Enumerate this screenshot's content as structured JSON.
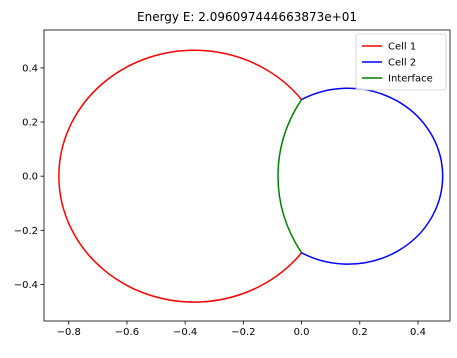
{
  "chart_data": {
    "type": "line",
    "title": "Energy E: 2.096097444663873e+01",
    "xlabel": "",
    "ylabel": "",
    "xlim": [
      -0.885,
      0.51
    ],
    "ylim": [
      -0.535,
      0.54
    ],
    "x_ticks": [
      -0.8,
      -0.6,
      -0.4,
      -0.2,
      0.0,
      0.2,
      0.4
    ],
    "x_tick_labels": [
      "−0.8",
      "−0.6",
      "−0.4",
      "−0.2",
      "0.0",
      "0.2",
      "0.4"
    ],
    "y_ticks": [
      -0.4,
      -0.2,
      0.0,
      0.2,
      0.4
    ],
    "y_tick_labels": [
      "−0.4",
      "−0.2",
      "0.0",
      "0.2",
      "0.4"
    ],
    "grid": false,
    "legend_position": "top-right",
    "series": [
      {
        "name": "Cell 1",
        "color": "#ff0000",
        "shape": "arc",
        "center": [
          -0.37,
          0.0
        ],
        "radius": 0.465,
        "from_point": [
          0.0,
          0.283
        ],
        "to_point": [
          0.0,
          -0.283
        ],
        "via_point": [
          -0.835,
          0.0
        ]
      },
      {
        "name": "Cell 2",
        "color": "#0000ff",
        "shape": "arc",
        "center": [
          0.16,
          0.0
        ],
        "radius": 0.325,
        "from_point": [
          0.0,
          0.283
        ],
        "to_point": [
          0.0,
          -0.283
        ],
        "via_point": [
          0.485,
          0.0
        ]
      },
      {
        "name": "Interface",
        "color": "#008000",
        "shape": "arc",
        "center": [
          0.45,
          0.0
        ],
        "radius": 0.535,
        "from_point": [
          0.0,
          0.283
        ],
        "to_point": [
          0.0,
          -0.283
        ],
        "via_point": [
          -0.085,
          0.0
        ]
      }
    ]
  }
}
